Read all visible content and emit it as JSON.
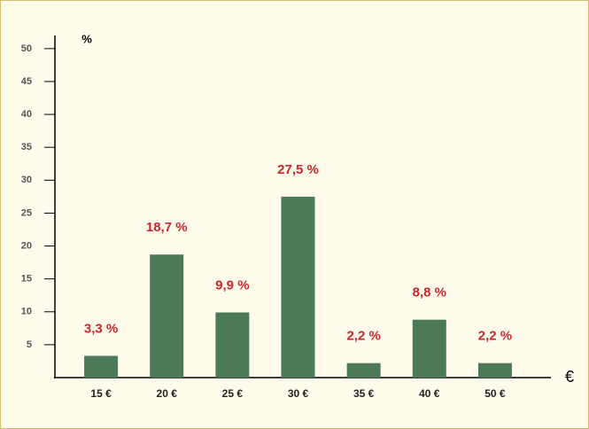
{
  "chart_data": {
    "type": "bar",
    "categories": [
      "15 €",
      "20 €",
      "25 €",
      "30 €",
      "35 €",
      "40 €",
      "50 €"
    ],
    "values": [
      3.3,
      18.7,
      9.9,
      27.5,
      2.2,
      8.8,
      2.2
    ],
    "value_labels": [
      "3,3 %",
      "18,7 %",
      "9,9 %",
      "27,5 %",
      "2,2 %",
      "8,8 %",
      "2,2 %"
    ],
    "color": "#4c7a56",
    "y_label": "%",
    "x_label": "€",
    "ylim": [
      0,
      52
    ],
    "yticks": [
      5,
      10,
      15,
      20,
      25,
      30,
      35,
      40,
      45,
      50
    ],
    "grid": false
  }
}
